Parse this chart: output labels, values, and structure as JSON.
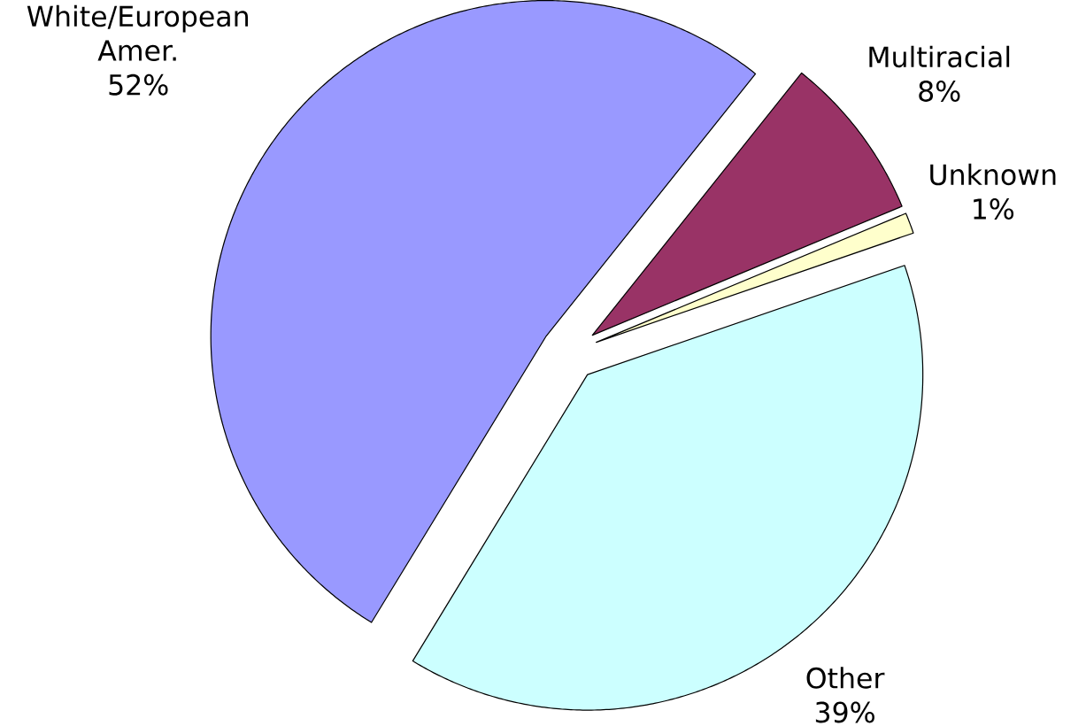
{
  "chart_data": {
    "type": "pie",
    "categories": [
      "Multiracial",
      "Unknown",
      "Other",
      "White/European Amer."
    ],
    "values": [
      8,
      1,
      39,
      52
    ],
    "value_labels": [
      "8%",
      "1%",
      "39%",
      "52%"
    ],
    "colors": [
      "#993366",
      "#ffffcc",
      "#ccffff",
      "#9999ff"
    ]
  }
}
